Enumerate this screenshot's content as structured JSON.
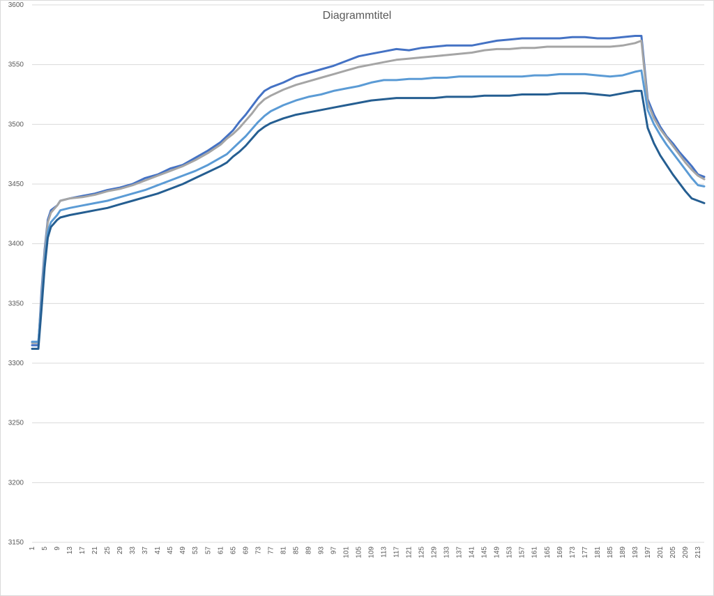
{
  "chart_data": {
    "type": "line",
    "title": "Diagrammtitel",
    "xlabel": "",
    "ylabel": "",
    "x_range": [
      1,
      215
    ],
    "ylim": [
      3150,
      3600
    ],
    "y_ticks": [
      3150,
      3200,
      3250,
      3300,
      3350,
      3400,
      3450,
      3500,
      3550,
      3600
    ],
    "x_tick_labels": [
      1,
      5,
      9,
      13,
      17,
      21,
      25,
      29,
      33,
      37,
      41,
      45,
      49,
      53,
      57,
      61,
      65,
      69,
      73,
      77,
      81,
      85,
      89,
      93,
      97,
      101,
      105,
      109,
      113,
      117,
      121,
      125,
      129,
      133,
      137,
      141,
      145,
      149,
      153,
      157,
      161,
      165,
      169,
      173,
      177,
      181,
      185,
      189,
      193,
      197,
      201,
      205,
      209,
      213
    ],
    "grid": true,
    "legend": "none",
    "series": [
      {
        "color": "#4472c4",
        "points": [
          [
            1,
            3315
          ],
          [
            3,
            3315
          ],
          [
            4,
            3360
          ],
          [
            5,
            3395
          ],
          [
            6,
            3420
          ],
          [
            7,
            3428
          ],
          [
            9,
            3432
          ],
          [
            10,
            3436
          ],
          [
            13,
            3438
          ],
          [
            17,
            3440
          ],
          [
            21,
            3442
          ],
          [
            25,
            3445
          ],
          [
            29,
            3447
          ],
          [
            33,
            3450
          ],
          [
            37,
            3455
          ],
          [
            41,
            3458
          ],
          [
            45,
            3463
          ],
          [
            49,
            3466
          ],
          [
            53,
            3472
          ],
          [
            57,
            3478
          ],
          [
            61,
            3485
          ],
          [
            63,
            3490
          ],
          [
            65,
            3495
          ],
          [
            67,
            3502
          ],
          [
            69,
            3508
          ],
          [
            71,
            3515
          ],
          [
            73,
            3522
          ],
          [
            75,
            3528
          ],
          [
            77,
            3531
          ],
          [
            81,
            3535
          ],
          [
            85,
            3540
          ],
          [
            89,
            3543
          ],
          [
            93,
            3546
          ],
          [
            97,
            3549
          ],
          [
            101,
            3553
          ],
          [
            105,
            3557
          ],
          [
            109,
            3559
          ],
          [
            113,
            3561
          ],
          [
            117,
            3563
          ],
          [
            121,
            3562
          ],
          [
            125,
            3564
          ],
          [
            129,
            3565
          ],
          [
            133,
            3566
          ],
          [
            137,
            3566
          ],
          [
            141,
            3566
          ],
          [
            145,
            3568
          ],
          [
            149,
            3570
          ],
          [
            153,
            3571
          ],
          [
            157,
            3572
          ],
          [
            161,
            3572
          ],
          [
            165,
            3572
          ],
          [
            169,
            3572
          ],
          [
            173,
            3573
          ],
          [
            177,
            3573
          ],
          [
            181,
            3572
          ],
          [
            185,
            3572
          ],
          [
            189,
            3573
          ],
          [
            193,
            3574
          ],
          [
            195,
            3574
          ],
          [
            197,
            3521
          ],
          [
            199,
            3508
          ],
          [
            201,
            3498
          ],
          [
            203,
            3490
          ],
          [
            205,
            3484
          ],
          [
            207,
            3477
          ],
          [
            209,
            3471
          ],
          [
            211,
            3465
          ],
          [
            213,
            3458
          ],
          [
            215,
            3456
          ]
        ]
      },
      {
        "color": "#a5a5a5",
        "points": [
          [
            1,
            3317
          ],
          [
            3,
            3317
          ],
          [
            4,
            3355
          ],
          [
            5,
            3392
          ],
          [
            6,
            3418
          ],
          [
            7,
            3426
          ],
          [
            9,
            3432
          ],
          [
            10,
            3436
          ],
          [
            13,
            3438
          ],
          [
            17,
            3439
          ],
          [
            21,
            3441
          ],
          [
            25,
            3444
          ],
          [
            29,
            3446
          ],
          [
            33,
            3449
          ],
          [
            37,
            3453
          ],
          [
            41,
            3457
          ],
          [
            45,
            3461
          ],
          [
            49,
            3465
          ],
          [
            53,
            3470
          ],
          [
            57,
            3476
          ],
          [
            61,
            3483
          ],
          [
            63,
            3488
          ],
          [
            65,
            3492
          ],
          [
            67,
            3497
          ],
          [
            69,
            3503
          ],
          [
            71,
            3509
          ],
          [
            73,
            3516
          ],
          [
            75,
            3521
          ],
          [
            77,
            3524
          ],
          [
            81,
            3529
          ],
          [
            85,
            3533
          ],
          [
            89,
            3536
          ],
          [
            93,
            3539
          ],
          [
            97,
            3542
          ],
          [
            101,
            3545
          ],
          [
            105,
            3548
          ],
          [
            109,
            3550
          ],
          [
            113,
            3552
          ],
          [
            117,
            3554
          ],
          [
            121,
            3555
          ],
          [
            125,
            3556
          ],
          [
            129,
            3557
          ],
          [
            133,
            3558
          ],
          [
            137,
            3559
          ],
          [
            141,
            3560
          ],
          [
            145,
            3562
          ],
          [
            149,
            3563
          ],
          [
            153,
            3563
          ],
          [
            157,
            3564
          ],
          [
            161,
            3564
          ],
          [
            165,
            3565
          ],
          [
            169,
            3565
          ],
          [
            173,
            3565
          ],
          [
            177,
            3565
          ],
          [
            181,
            3565
          ],
          [
            185,
            3565
          ],
          [
            189,
            3566
          ],
          [
            193,
            3568
          ],
          [
            195,
            3570
          ],
          [
            197,
            3518
          ],
          [
            199,
            3505
          ],
          [
            201,
            3496
          ],
          [
            203,
            3489
          ],
          [
            205,
            3482
          ],
          [
            207,
            3475
          ],
          [
            209,
            3468
          ],
          [
            211,
            3462
          ],
          [
            213,
            3457
          ],
          [
            215,
            3454
          ]
        ]
      },
      {
        "color": "#5b9bd5",
        "points": [
          [
            1,
            3318
          ],
          [
            3,
            3318
          ],
          [
            4,
            3350
          ],
          [
            5,
            3385
          ],
          [
            6,
            3410
          ],
          [
            7,
            3418
          ],
          [
            9,
            3424
          ],
          [
            10,
            3428
          ],
          [
            13,
            3430
          ],
          [
            17,
            3432
          ],
          [
            21,
            3434
          ],
          [
            25,
            3436
          ],
          [
            29,
            3439
          ],
          [
            33,
            3442
          ],
          [
            37,
            3445
          ],
          [
            41,
            3449
          ],
          [
            45,
            3453
          ],
          [
            49,
            3457
          ],
          [
            53,
            3461
          ],
          [
            57,
            3466
          ],
          [
            61,
            3472
          ],
          [
            63,
            3475
          ],
          [
            65,
            3480
          ],
          [
            67,
            3485
          ],
          [
            69,
            3490
          ],
          [
            71,
            3496
          ],
          [
            73,
            3502
          ],
          [
            75,
            3507
          ],
          [
            77,
            3511
          ],
          [
            81,
            3516
          ],
          [
            85,
            3520
          ],
          [
            89,
            3523
          ],
          [
            93,
            3525
          ],
          [
            97,
            3528
          ],
          [
            101,
            3530
          ],
          [
            105,
            3532
          ],
          [
            109,
            3535
          ],
          [
            113,
            3537
          ],
          [
            117,
            3537
          ],
          [
            121,
            3538
          ],
          [
            125,
            3538
          ],
          [
            129,
            3539
          ],
          [
            133,
            3539
          ],
          [
            137,
            3540
          ],
          [
            141,
            3540
          ],
          [
            145,
            3540
          ],
          [
            149,
            3540
          ],
          [
            153,
            3540
          ],
          [
            157,
            3540
          ],
          [
            161,
            3541
          ],
          [
            165,
            3541
          ],
          [
            169,
            3542
          ],
          [
            173,
            3542
          ],
          [
            177,
            3542
          ],
          [
            181,
            3541
          ],
          [
            185,
            3540
          ],
          [
            189,
            3541
          ],
          [
            193,
            3544
          ],
          [
            195,
            3545
          ],
          [
            197,
            3512
          ],
          [
            199,
            3500
          ],
          [
            201,
            3491
          ],
          [
            203,
            3483
          ],
          [
            205,
            3476
          ],
          [
            207,
            3469
          ],
          [
            209,
            3462
          ],
          [
            211,
            3455
          ],
          [
            213,
            3449
          ],
          [
            215,
            3448
          ]
        ]
      },
      {
        "color": "#255e91",
        "points": [
          [
            1,
            3312
          ],
          [
            3,
            3312
          ],
          [
            4,
            3345
          ],
          [
            5,
            3380
          ],
          [
            6,
            3405
          ],
          [
            7,
            3414
          ],
          [
            9,
            3420
          ],
          [
            10,
            3422
          ],
          [
            13,
            3424
          ],
          [
            17,
            3426
          ],
          [
            21,
            3428
          ],
          [
            25,
            3430
          ],
          [
            29,
            3433
          ],
          [
            33,
            3436
          ],
          [
            37,
            3439
          ],
          [
            41,
            3442
          ],
          [
            45,
            3446
          ],
          [
            49,
            3450
          ],
          [
            53,
            3455
          ],
          [
            57,
            3460
          ],
          [
            61,
            3465
          ],
          [
            63,
            3468
          ],
          [
            65,
            3473
          ],
          [
            67,
            3477
          ],
          [
            69,
            3482
          ],
          [
            71,
            3488
          ],
          [
            73,
            3494
          ],
          [
            75,
            3498
          ],
          [
            77,
            3501
          ],
          [
            81,
            3505
          ],
          [
            85,
            3508
          ],
          [
            89,
            3510
          ],
          [
            93,
            3512
          ],
          [
            97,
            3514
          ],
          [
            101,
            3516
          ],
          [
            105,
            3518
          ],
          [
            109,
            3520
          ],
          [
            113,
            3521
          ],
          [
            117,
            3522
          ],
          [
            121,
            3522
          ],
          [
            125,
            3522
          ],
          [
            129,
            3522
          ],
          [
            133,
            3523
          ],
          [
            137,
            3523
          ],
          [
            141,
            3523
          ],
          [
            145,
            3524
          ],
          [
            149,
            3524
          ],
          [
            153,
            3524
          ],
          [
            157,
            3525
          ],
          [
            161,
            3525
          ],
          [
            165,
            3525
          ],
          [
            169,
            3526
          ],
          [
            173,
            3526
          ],
          [
            177,
            3526
          ],
          [
            181,
            3525
          ],
          [
            185,
            3524
          ],
          [
            189,
            3526
          ],
          [
            193,
            3528
          ],
          [
            195,
            3528
          ],
          [
            197,
            3497
          ],
          [
            199,
            3484
          ],
          [
            201,
            3474
          ],
          [
            203,
            3466
          ],
          [
            205,
            3458
          ],
          [
            207,
            3451
          ],
          [
            209,
            3444
          ],
          [
            211,
            3438
          ],
          [
            213,
            3436
          ],
          [
            215,
            3434
          ]
        ]
      }
    ]
  }
}
